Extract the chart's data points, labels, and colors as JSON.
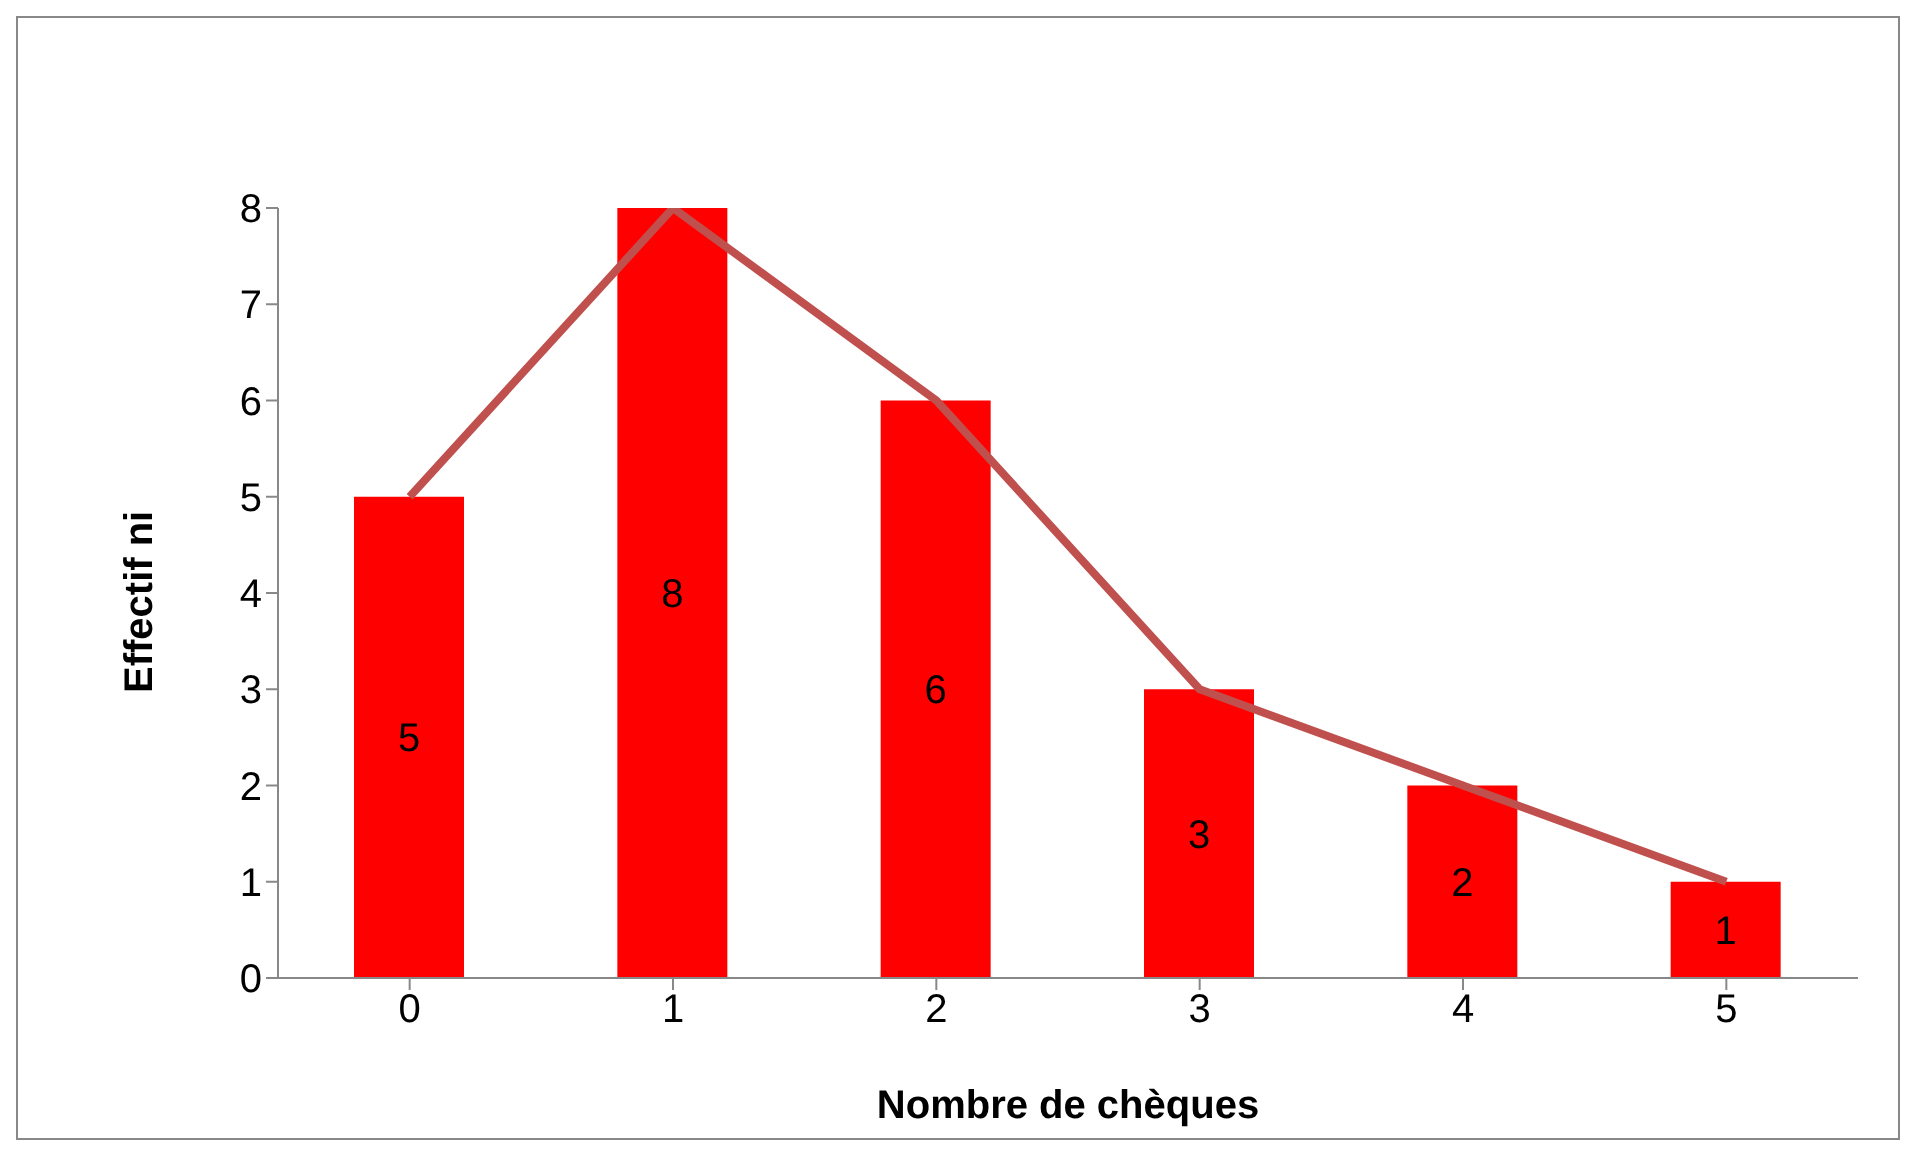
{
  "chart_data": {
    "type": "bar",
    "xlabel": "Nombre de chèques",
    "ylabel": "Effectif ni",
    "categories": [
      "0",
      "1",
      "2",
      "3",
      "4",
      "5"
    ],
    "series": [
      {
        "color": "#ff0000",
        "values": [
          5,
          8,
          6,
          3,
          2,
          1
        ],
        "value_labels": [
          "5",
          "8",
          "6",
          "3",
          "2",
          "1"
        ]
      },
      {
        "type": "line",
        "color": "#c0504d",
        "values": [
          5,
          8,
          6,
          3,
          2,
          1
        ]
      }
    ],
    "ylim": [
      0,
      8
    ],
    "yticks": [
      0,
      1,
      2,
      3,
      4,
      5,
      6,
      7,
      8
    ],
    "grid": false,
    "legend": false,
    "marker": "none",
    "line_style": "solid"
  }
}
